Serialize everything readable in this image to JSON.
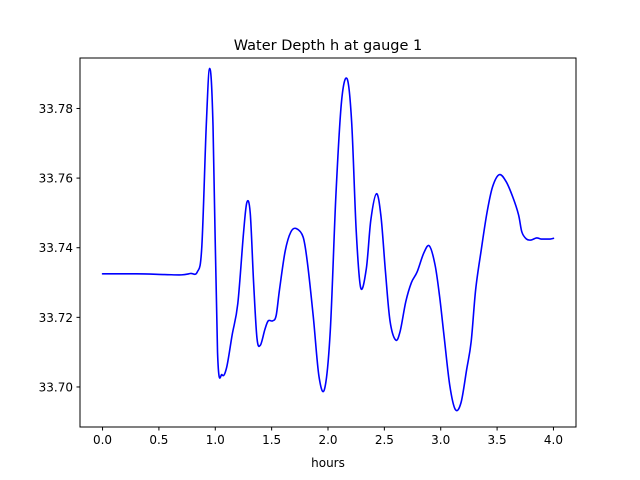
{
  "chart_data": {
    "type": "line",
    "title": "Water Depth h at gauge 1",
    "xlabel": "hours",
    "ylabel": "",
    "xlim": [
      -0.2,
      4.2
    ],
    "ylim": [
      33.6885,
      33.7945
    ],
    "xticks": [
      0.0,
      0.5,
      1.0,
      1.5,
      2.0,
      2.5,
      3.0,
      3.5,
      4.0
    ],
    "xtick_labels": [
      "0.0",
      "0.5",
      "1.0",
      "1.5",
      "2.0",
      "2.5",
      "3.0",
      "3.5",
      "4.0"
    ],
    "yticks": [
      33.7,
      33.72,
      33.74,
      33.76,
      33.78
    ],
    "ytick_labels": [
      "33.70",
      "33.72",
      "33.74",
      "33.76",
      "33.78"
    ],
    "grid": false,
    "series": [
      {
        "color": "#0000ff",
        "x": [
          0.0,
          0.3,
          0.55,
          0.7,
          0.78,
          0.84,
          0.88,
          0.92,
          0.95,
          0.98,
          1.02,
          1.06,
          1.1,
          1.15,
          1.2,
          1.25,
          1.28,
          1.31,
          1.34,
          1.37,
          1.4,
          1.44,
          1.47,
          1.51,
          1.54,
          1.57,
          1.62,
          1.67,
          1.72,
          1.78,
          1.82,
          1.87,
          1.92,
          1.97,
          2.02,
          2.07,
          2.12,
          2.17,
          2.21,
          2.25,
          2.29,
          2.34,
          2.38,
          2.43,
          2.47,
          2.51,
          2.55,
          2.6,
          2.64,
          2.69,
          2.74,
          2.79,
          2.85,
          2.9,
          2.95,
          2.99,
          3.03,
          3.08,
          3.13,
          3.18,
          3.23,
          3.27,
          3.31,
          3.36,
          3.41,
          3.46,
          3.52,
          3.58,
          3.64,
          3.69,
          3.72,
          3.76,
          3.8,
          3.85,
          3.89,
          3.93,
          3.97,
          4.0
        ],
        "y": [
          33.7325,
          33.7325,
          33.7323,
          33.7322,
          33.7326,
          33.733,
          33.74,
          33.775,
          33.7915,
          33.775,
          33.71,
          33.7035,
          33.7055,
          33.715,
          33.724,
          33.744,
          33.753,
          33.75,
          33.73,
          33.714,
          33.712,
          33.7165,
          33.719,
          33.719,
          33.7205,
          33.728,
          33.739,
          33.7445,
          33.7455,
          33.743,
          33.735,
          33.72,
          33.703,
          33.6995,
          33.716,
          33.755,
          33.782,
          33.7885,
          33.776,
          33.745,
          33.7285,
          33.734,
          33.748,
          33.7555,
          33.749,
          33.733,
          33.719,
          33.7135,
          33.716,
          33.7245,
          33.73,
          33.733,
          33.7385,
          33.7405,
          33.735,
          33.726,
          33.7145,
          33.7005,
          33.6935,
          33.6955,
          33.705,
          33.713,
          33.728,
          33.7395,
          33.75,
          33.7575,
          33.761,
          33.759,
          33.7545,
          33.7495,
          33.7445,
          33.7425,
          33.7422,
          33.7428,
          33.7425,
          33.7425,
          33.7425,
          33.7427
        ]
      }
    ]
  }
}
